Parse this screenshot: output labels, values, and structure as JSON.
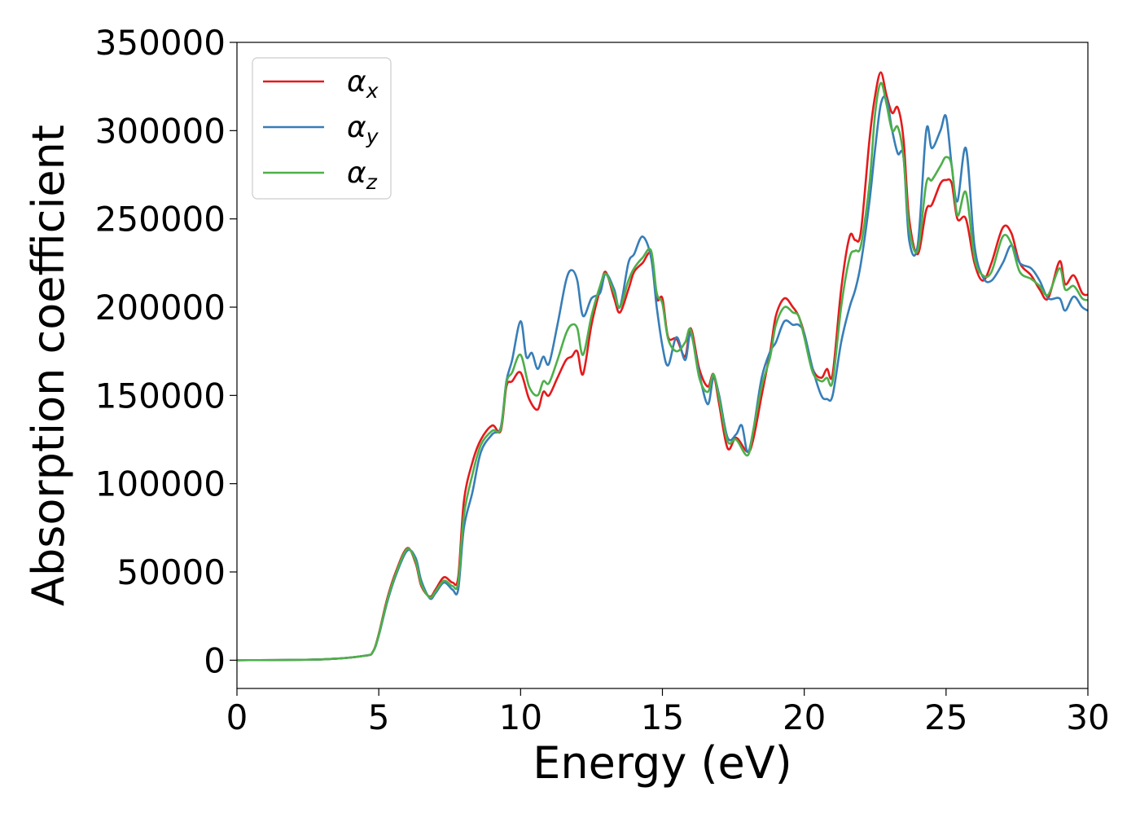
{
  "chart_data": {
    "type": "line",
    "title": "",
    "xlabel": "Energy (eV)",
    "ylabel": "Absorption coefficient",
    "xlim": [
      0,
      30
    ],
    "ylim": [
      -16000,
      350000
    ],
    "xticks": [
      0,
      5,
      10,
      15,
      20,
      25,
      30
    ],
    "xtick_labels": [
      "0",
      "5",
      "10",
      "15",
      "20",
      "25",
      "30"
    ],
    "yticks": [
      0,
      50000,
      100000,
      150000,
      200000,
      250000,
      300000,
      350000
    ],
    "ytick_labels": [
      "0",
      "50000",
      "100000",
      "150000",
      "200000",
      "250000",
      "300000",
      "350000"
    ],
    "grid": false,
    "legend_position": "top-left",
    "series": [
      {
        "name": "α",
        "subscript": "x",
        "color": "#e41a1c",
        "x": [
          0,
          3,
          4.5,
          4.8,
          5.0,
          5.3,
          5.6,
          6.0,
          6.3,
          6.5,
          6.8,
          7.0,
          7.3,
          7.6,
          7.8,
          8.0,
          8.3,
          8.6,
          9.0,
          9.3,
          9.5,
          9.7,
          10.0,
          10.3,
          10.6,
          10.8,
          11.0,
          11.3,
          11.6,
          11.8,
          12.0,
          12.2,
          12.5,
          12.8,
          13.0,
          13.3,
          13.5,
          13.8,
          14.0,
          14.3,
          14.6,
          14.8,
          15.0,
          15.2,
          15.5,
          15.8,
          16.0,
          16.3,
          16.6,
          16.8,
          17.0,
          17.3,
          17.6,
          18.0,
          18.2,
          18.5,
          18.8,
          19.0,
          19.3,
          19.6,
          19.8,
          20.0,
          20.3,
          20.6,
          20.8,
          21.0,
          21.3,
          21.6,
          21.8,
          22.0,
          22.3,
          22.5,
          22.7,
          22.9,
          23.1,
          23.3,
          23.5,
          23.7,
          24.0,
          24.3,
          24.5,
          24.8,
          25.0,
          25.2,
          25.4,
          25.7,
          26.0,
          26.3,
          26.6,
          27.0,
          27.3,
          27.6,
          28.0,
          28.3,
          28.6,
          29.0,
          29.2,
          29.5,
          29.8,
          30.0
        ],
        "y": [
          0,
          500,
          2500,
          5000,
          15000,
          35000,
          50000,
          63500,
          55000,
          42000,
          36000,
          40000,
          47000,
          44000,
          47000,
          90000,
          112000,
          125000,
          133000,
          130000,
          155000,
          158000,
          163000,
          148000,
          142000,
          152000,
          150000,
          160000,
          170000,
          172000,
          175000,
          162000,
          190000,
          210000,
          220000,
          205000,
          197000,
          210000,
          220000,
          225000,
          230000,
          205000,
          205000,
          183000,
          182000,
          172000,
          188000,
          165000,
          155000,
          162000,
          145000,
          120000,
          126000,
          118000,
          125000,
          150000,
          175000,
          195000,
          205000,
          200000,
          195000,
          185000,
          165000,
          160000,
          165000,
          162000,
          210000,
          240000,
          238000,
          243000,
          295000,
          320000,
          333000,
          320000,
          310000,
          313000,
          295000,
          250000,
          230000,
          255000,
          258000,
          270000,
          272000,
          270000,
          250000,
          250000,
          225000,
          215000,
          225000,
          245000,
          242000,
          225000,
          218000,
          210000,
          205000,
          226000,
          213000,
          218000,
          208000,
          207000
        ]
      },
      {
        "name": "α",
        "subscript": "y",
        "color": "#377eb8",
        "x": [
          0,
          3,
          4.5,
          4.8,
          5.0,
          5.3,
          5.6,
          6.0,
          6.3,
          6.5,
          6.8,
          7.0,
          7.3,
          7.6,
          7.8,
          8.0,
          8.3,
          8.6,
          9.0,
          9.3,
          9.5,
          9.7,
          10.0,
          10.2,
          10.4,
          10.6,
          10.8,
          11.0,
          11.3,
          11.6,
          11.8,
          12.0,
          12.2,
          12.5,
          12.8,
          13.0,
          13.3,
          13.5,
          13.8,
          14.0,
          14.3,
          14.6,
          14.8,
          15.0,
          15.2,
          15.5,
          15.8,
          16.0,
          16.3,
          16.6,
          16.8,
          17.0,
          17.3,
          17.6,
          17.8,
          18.0,
          18.2,
          18.5,
          18.8,
          19.0,
          19.3,
          19.6,
          19.8,
          20.0,
          20.3,
          20.6,
          20.8,
          21.0,
          21.3,
          21.6,
          21.8,
          22.0,
          22.3,
          22.5,
          22.7,
          22.9,
          23.1,
          23.3,
          23.5,
          23.7,
          24.0,
          24.3,
          24.5,
          24.8,
          25.0,
          25.2,
          25.4,
          25.7,
          26.0,
          26.3,
          26.6,
          27.0,
          27.3,
          27.6,
          28.0,
          28.3,
          28.6,
          29.0,
          29.2,
          29.5,
          29.8,
          30.0
        ],
        "y": [
          0,
          500,
          2500,
          5000,
          14000,
          33000,
          48000,
          62000,
          58000,
          45000,
          35000,
          38000,
          44000,
          40000,
          40000,
          75000,
          95000,
          118000,
          128000,
          132000,
          158000,
          170000,
          192000,
          172000,
          174000,
          165000,
          172000,
          168000,
          190000,
          215000,
          221000,
          215000,
          195000,
          205000,
          208000,
          219000,
          210000,
          200000,
          225000,
          230000,
          240000,
          228000,
          200000,
          178000,
          167000,
          183000,
          170000,
          185000,
          162000,
          145000,
          160000,
          150000,
          126000,
          128000,
          133000,
          118000,
          130000,
          160000,
          175000,
          180000,
          192000,
          190000,
          190000,
          185000,
          165000,
          150000,
          148000,
          150000,
          180000,
          200000,
          210000,
          225000,
          260000,
          290000,
          315000,
          318000,
          300000,
          287000,
          285000,
          238000,
          235000,
          300000,
          290000,
          300000,
          308000,
          280000,
          260000,
          290000,
          235000,
          217000,
          215000,
          225000,
          235000,
          225000,
          222000,
          215000,
          205000,
          205000,
          198000,
          206000,
          200000,
          198000
        ]
      },
      {
        "name": "α",
        "subscript": "z",
        "color": "#4daf4a",
        "x": [
          0,
          3,
          4.5,
          4.8,
          5.0,
          5.3,
          5.6,
          6.0,
          6.3,
          6.5,
          6.8,
          7.0,
          7.3,
          7.6,
          7.8,
          8.0,
          8.3,
          8.6,
          9.0,
          9.3,
          9.5,
          9.7,
          10.0,
          10.3,
          10.6,
          10.8,
          11.0,
          11.3,
          11.6,
          11.8,
          12.0,
          12.2,
          12.5,
          12.8,
          13.0,
          13.3,
          13.5,
          13.8,
          14.0,
          14.3,
          14.6,
          14.8,
          15.0,
          15.2,
          15.5,
          15.8,
          16.0,
          16.3,
          16.6,
          16.8,
          17.0,
          17.3,
          17.6,
          18.0,
          18.2,
          18.5,
          18.8,
          19.0,
          19.3,
          19.6,
          19.8,
          20.0,
          20.3,
          20.6,
          20.8,
          21.0,
          21.3,
          21.6,
          21.8,
          22.0,
          22.3,
          22.5,
          22.7,
          22.9,
          23.1,
          23.3,
          23.5,
          23.7,
          24.0,
          24.3,
          24.5,
          24.8,
          25.0,
          25.2,
          25.4,
          25.7,
          26.0,
          26.3,
          26.6,
          27.0,
          27.3,
          27.6,
          28.0,
          28.3,
          28.6,
          29.0,
          29.2,
          29.5,
          29.8,
          30.0
        ],
        "y": [
          0,
          500,
          2500,
          5000,
          14500,
          34000,
          49000,
          63000,
          56000,
          43000,
          35500,
          39000,
          45000,
          42000,
          44000,
          82000,
          105000,
          122000,
          130000,
          131000,
          157000,
          163000,
          173000,
          155000,
          150000,
          158000,
          157000,
          170000,
          185000,
          190000,
          188000,
          173000,
          195000,
          212000,
          219000,
          208000,
          200000,
          215000,
          222000,
          228000,
          232000,
          208000,
          202000,
          182000,
          175000,
          180000,
          187000,
          160000,
          152000,
          162000,
          148000,
          124000,
          125000,
          116000,
          130000,
          155000,
          172000,
          190000,
          200000,
          197000,
          195000,
          183000,
          163000,
          158000,
          160000,
          158000,
          200000,
          228000,
          232000,
          235000,
          270000,
          310000,
          327000,
          315000,
          300000,
          302000,
          285000,
          245000,
          232000,
          270000,
          272000,
          280000,
          285000,
          280000,
          252000,
          265000,
          228000,
          218000,
          220000,
          240000,
          236000,
          220000,
          216000,
          212000,
          207000,
          222000,
          210000,
          212000,
          205000,
          204000
        ]
      }
    ]
  }
}
